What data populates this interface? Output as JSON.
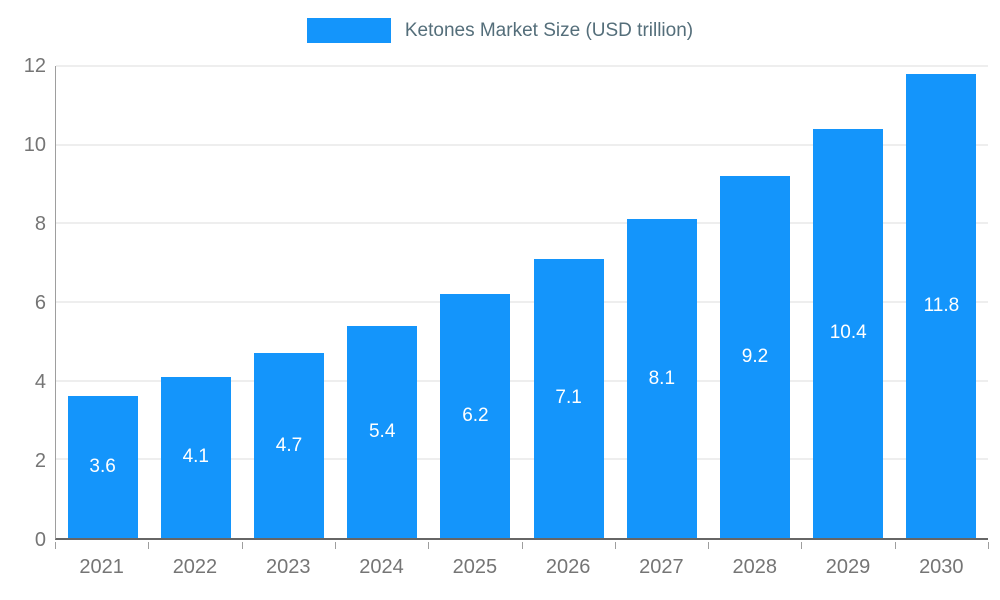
{
  "chart_data": {
    "type": "bar",
    "title": "Ketones Market Size (USD trillion)",
    "legend_position": "top",
    "categories": [
      "2021",
      "2022",
      "2023",
      "2024",
      "2025",
      "2026",
      "2027",
      "2028",
      "2029",
      "2030"
    ],
    "values": [
      3.6,
      4.1,
      4.7,
      5.4,
      6.2,
      7.1,
      8.1,
      9.2,
      10.4,
      11.8
    ],
    "xlabel": "",
    "ylabel": "",
    "ylim": [
      0,
      12
    ],
    "yticks": [
      0,
      2,
      4,
      6,
      8,
      10,
      12
    ],
    "grid": true,
    "bar_value_labels_inside": true,
    "colors": {
      "bar": "#1495fb",
      "bar_label": "#ffffff",
      "axis_text": "#757575",
      "title_text": "#546e7a",
      "gridline": "#dddddd",
      "axis_line": "#666666"
    }
  }
}
